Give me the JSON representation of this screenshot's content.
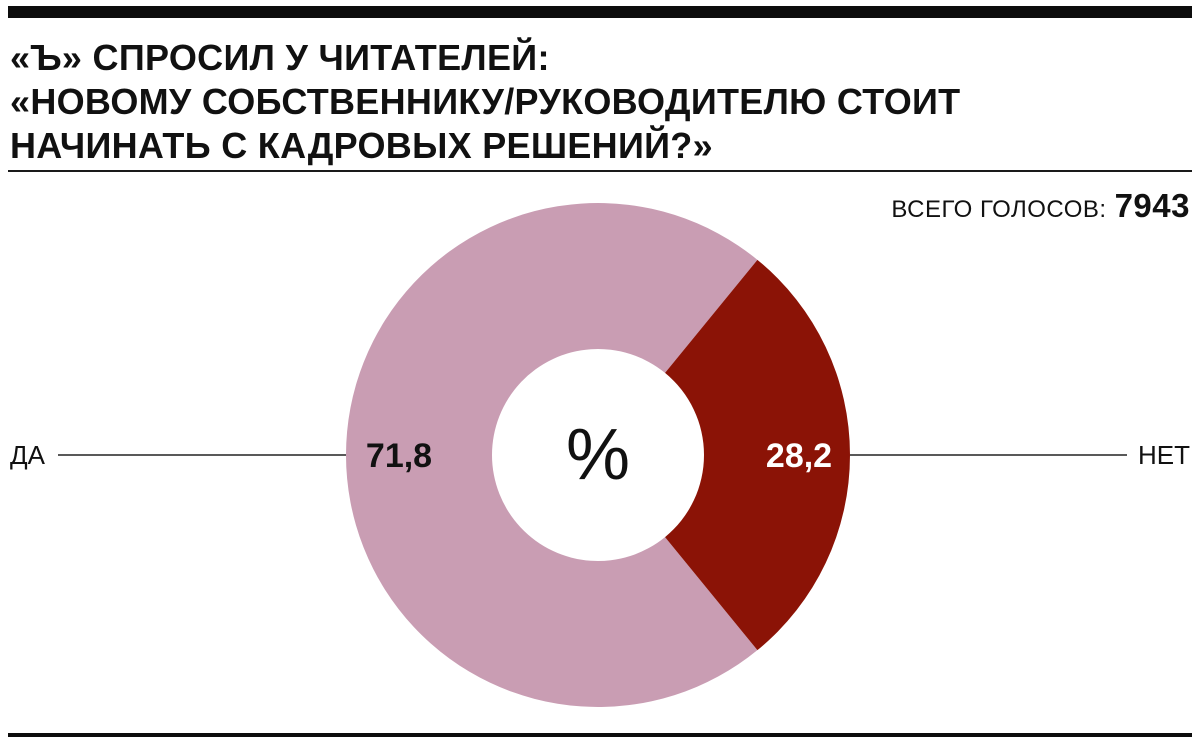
{
  "header": {
    "title_lines": [
      "«Ъ» СПРОСИЛ У ЧИТАТЕЛЕЙ:",
      "«НОВОМУ СОБСТВЕННИКУ/РУКОВОДИТЕЛЮ СТОИТ",
      "НАЧИНАТЬ С КАДРОВЫХ РЕШЕНИЙ?»"
    ],
    "total_label": "ВСЕГО ГОЛОСОВ:",
    "total_value": "7943"
  },
  "chart_data": {
    "type": "pie",
    "center_label": "%",
    "slices": [
      {
        "label": "ДА",
        "value": 71.8,
        "value_text": "71,8",
        "color": "#c99db3",
        "value_color": "#111111"
      },
      {
        "label": "НЕТ",
        "value": 28.2,
        "value_text": "28,2",
        "color": "#8b1306",
        "value_color": "#ffffff"
      }
    ],
    "total": 7943
  }
}
